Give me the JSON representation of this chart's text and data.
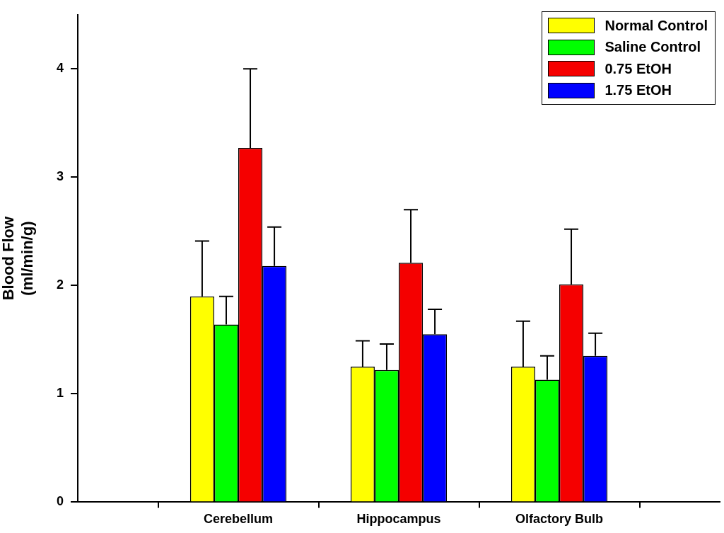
{
  "chart_data": {
    "type": "bar",
    "ylabel": "Blood Flow\n(ml/min/g)",
    "categories": [
      null,
      "Cerebellum",
      "Hippocampus",
      "Olfactory Bulb",
      null
    ],
    "series": [
      {
        "name": "Normal Control",
        "color": "#ffff00",
        "values": [
          null,
          1.9,
          1.25,
          1.25,
          null
        ],
        "errors": [
          null,
          [
            1.9,
            2.41
          ],
          [
            1.25,
            1.49
          ],
          [
            1.25,
            1.67
          ],
          null
        ]
      },
      {
        "name": "Saline Control",
        "color": "#00ff00",
        "values": [
          null,
          1.64,
          1.22,
          1.13,
          null
        ],
        "errors": [
          null,
          [
            1.64,
            1.9
          ],
          [
            1.22,
            1.46
          ],
          [
            1.13,
            1.35
          ],
          null
        ]
      },
      {
        "name": "0.75 EtOH",
        "color": "#f50000",
        "values": [
          null,
          3.27,
          2.21,
          2.01,
          null
        ],
        "errors": [
          null,
          [
            3.27,
            4.0
          ],
          [
            2.21,
            2.7
          ],
          [
            2.01,
            2.52
          ],
          null
        ]
      },
      {
        "name": "1.75 EtOH",
        "color": "#0000ff",
        "values": [
          null,
          2.18,
          1.55,
          1.35,
          null
        ],
        "errors": [
          null,
          [
            2.18,
            2.54
          ],
          [
            1.55,
            1.78
          ],
          [
            1.35,
            1.56
          ],
          null
        ]
      }
    ],
    "ylim": [
      0,
      4.5
    ],
    "yticks": [
      0,
      1,
      2,
      3,
      4
    ],
    "grid": false,
    "legend": "top right"
  }
}
